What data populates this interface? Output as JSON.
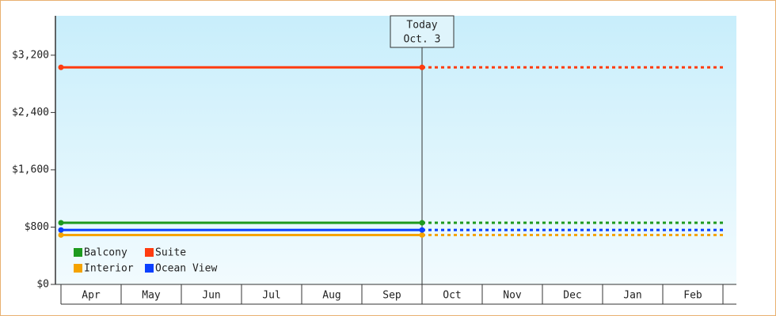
{
  "chart_data": {
    "type": "line",
    "categories": [
      "Apr",
      "May",
      "Jun",
      "Jul",
      "Aug",
      "Sep",
      "Oct",
      "Nov",
      "Dec",
      "Jan",
      "Feb",
      null
    ],
    "series": [
      {
        "name": "Balcony",
        "color": "#1e9a1e",
        "values": [
          860,
          860,
          860,
          860,
          860,
          860,
          860,
          860,
          860,
          860,
          860,
          860
        ]
      },
      {
        "name": "Suite",
        "color": "#ff3c10",
        "values": [
          3030,
          3030,
          3030,
          3030,
          3030,
          3030,
          3030,
          3030,
          3030,
          3030,
          3030,
          3030
        ]
      },
      {
        "name": "Interior",
        "color": "#f5a300",
        "values": [
          690,
          690,
          690,
          690,
          690,
          690,
          690,
          690,
          690,
          690,
          690,
          690
        ]
      },
      {
        "name": "Ocean View",
        "color": "#0a40ff",
        "values": [
          760,
          760,
          760,
          760,
          760,
          760,
          760,
          760,
          760,
          760,
          760,
          760
        ]
      }
    ],
    "annotation": [
      "Today",
      "Oct. 3"
    ],
    "ylim": [
      0,
      3750
    ],
    "yticks": [
      {
        "value": 0,
        "label": "$0"
      },
      {
        "value": 800,
        "label": "$800"
      },
      {
        "value": 1600,
        "label": "$1,600"
      },
      {
        "value": 2400,
        "label": "$2,400"
      },
      {
        "value": 3200,
        "label": "$3,200"
      }
    ]
  }
}
